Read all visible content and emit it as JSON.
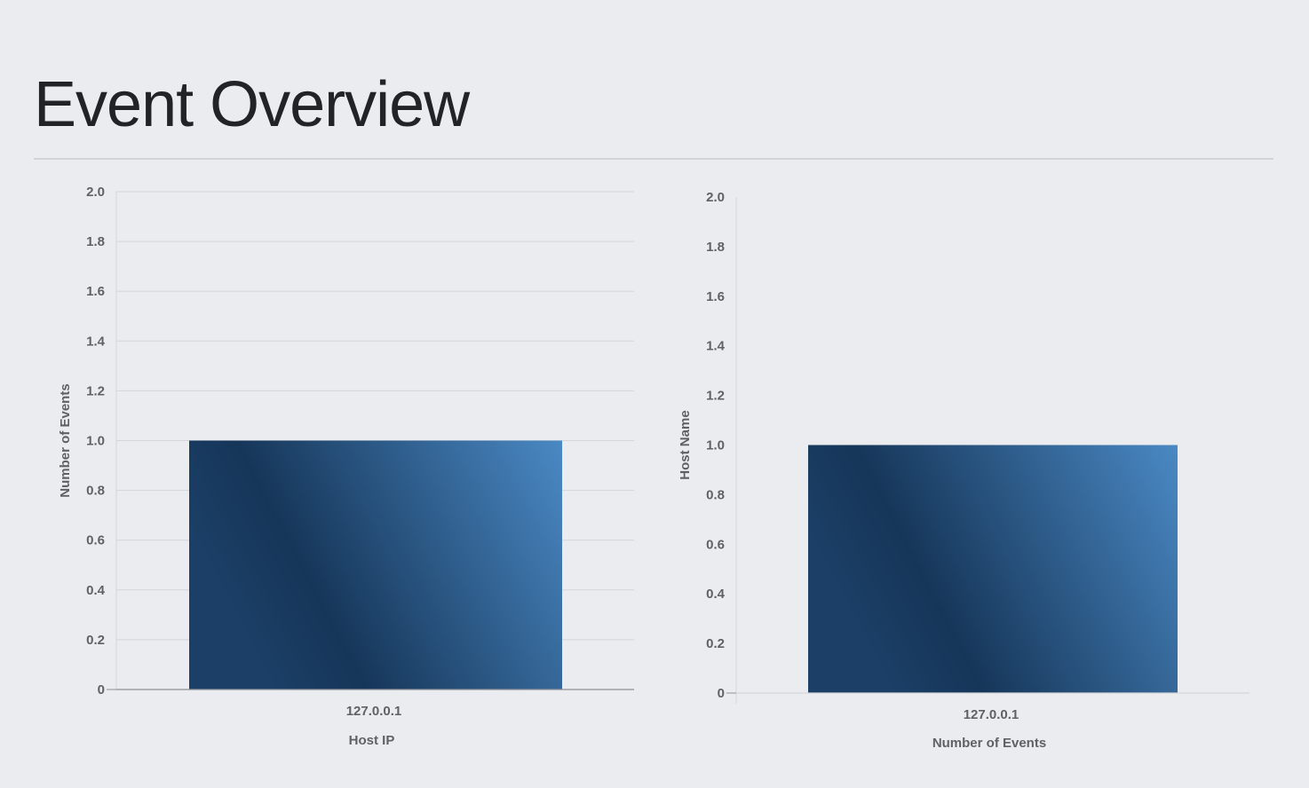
{
  "page": {
    "title": "Event Overview"
  },
  "colors": {
    "background": "#ebecf0",
    "bar_gradient_dark": "#163659",
    "bar_gradient_light": "#4a89c4",
    "grid": "#d4d5da",
    "text": "#5f6166"
  },
  "chart_data": [
    {
      "type": "bar",
      "categories": [
        "127.0.0.1"
      ],
      "values": [
        1
      ],
      "title": "",
      "xlabel": "Host IP",
      "ylabel": "Number of Events",
      "ylim": [
        0,
        2
      ],
      "yticks": [
        "0",
        "0.2",
        "0.4",
        "0.6",
        "0.8",
        "1.0",
        "1.2",
        "1.4",
        "1.6",
        "1.8",
        "2.0"
      ],
      "grid": true
    },
    {
      "type": "bar",
      "categories": [
        "127.0.0.1"
      ],
      "values": [
        1
      ],
      "title": "",
      "xlabel": "Number of Events",
      "ylabel": "Host Name",
      "ylim": [
        0,
        2
      ],
      "yticks": [
        "0",
        "0.2",
        "0.4",
        "0.6",
        "0.8",
        "1.0",
        "1.2",
        "1.4",
        "1.6",
        "1.8",
        "2.0"
      ],
      "grid": false
    }
  ]
}
